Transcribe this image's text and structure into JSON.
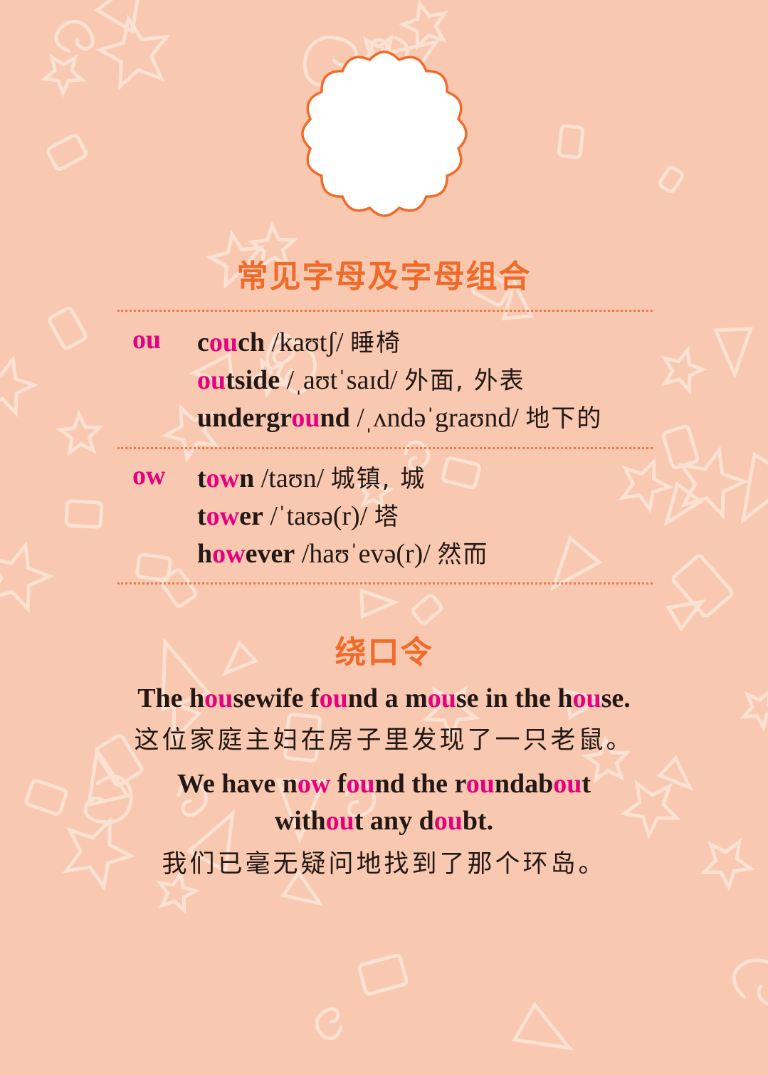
{
  "colors": {
    "background": "#f8c9b0",
    "pattern": "#fbe1d2",
    "heading": "#f06a2a",
    "highlight": "#e4007f",
    "text": "#231815",
    "badge_border": "#f06a2a",
    "rule": "#ea7a4c"
  },
  "section_letters": {
    "title": "常见字母及字母组合",
    "groups": [
      {
        "label": "ou",
        "entries": [
          {
            "word_parts": [
              [
                "c",
                false
              ],
              [
                "ou",
                true
              ],
              [
                "ch",
                false
              ]
            ],
            "ipa": " /kaʊtʃ/ ",
            "meaning": "睡椅"
          },
          {
            "word_parts": [
              [
                "ou",
                true
              ],
              [
                "tside",
                false
              ]
            ],
            "ipa": " /ˌaʊtˈsaɪd/ ",
            "meaning": "外面, 外表"
          },
          {
            "word_parts": [
              [
                "undergr",
                false
              ],
              [
                "ou",
                true
              ],
              [
                "nd",
                false
              ]
            ],
            "ipa": " /ˌʌndəˈgraʊnd/ ",
            "meaning": "地下的"
          }
        ]
      },
      {
        "label": "ow",
        "entries": [
          {
            "word_parts": [
              [
                "t",
                false
              ],
              [
                "ow",
                true
              ],
              [
                "n",
                false
              ]
            ],
            "ipa": " /taʊn/ ",
            "meaning": "城镇, 城"
          },
          {
            "word_parts": [
              [
                "t",
                false
              ],
              [
                "ow",
                true
              ],
              [
                "er",
                false
              ]
            ],
            "ipa": " /ˈtaʊə(r)/ ",
            "meaning": "塔"
          },
          {
            "word_parts": [
              [
                "h",
                false
              ],
              [
                "ow",
                true
              ],
              [
                "ever",
                false
              ]
            ],
            "ipa": " /haʊˈevə(r)/ ",
            "meaning": "然而"
          }
        ]
      }
    ]
  },
  "section_twister": {
    "title": "绕口令",
    "lines": [
      {
        "parts": [
          [
            "The h",
            false
          ],
          [
            "ou",
            true
          ],
          [
            "sewife f",
            false
          ],
          [
            "ou",
            true
          ],
          [
            "nd a m",
            false
          ],
          [
            "ou",
            true
          ],
          [
            "se in the h",
            false
          ],
          [
            "ou",
            true
          ],
          [
            "se.",
            false
          ]
        ]
      },
      {
        "parts": [
          [
            "We have n",
            false
          ],
          [
            "ow",
            true
          ],
          [
            " f",
            false
          ],
          [
            "ou",
            true
          ],
          [
            "nd the r",
            false
          ],
          [
            "ou",
            true
          ],
          [
            "ndab",
            false
          ],
          [
            "ou",
            true
          ],
          [
            "t",
            false
          ]
        ]
      },
      {
        "parts": [
          [
            "with",
            false
          ],
          [
            "ou",
            true
          ],
          [
            "t any d",
            false
          ],
          [
            "ou",
            true
          ],
          [
            "bt.",
            false
          ]
        ]
      }
    ],
    "translations": [
      "这位家庭主妇在房子里发现了一只老鼠。",
      "我们已毫无疑问地找到了那个环岛。"
    ]
  }
}
